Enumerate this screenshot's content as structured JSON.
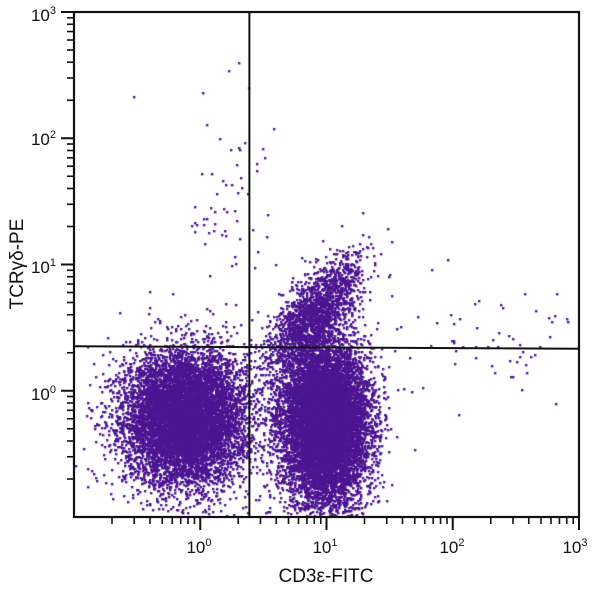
{
  "chart_data": {
    "type": "scatter",
    "subtype": "flow-cytometry-dot-plot",
    "xlabel": "CD3ε-FITC",
    "ylabel": "TCRγδ-PE",
    "xscale": "log",
    "yscale": "log",
    "xlim": [
      0.1,
      1000
    ],
    "ylim": [
      0.1,
      1000
    ],
    "x_ticks": [
      {
        "base": "10",
        "exp": "0",
        "value": 1
      },
      {
        "base": "10",
        "exp": "1",
        "value": 10
      },
      {
        "base": "10",
        "exp": "2",
        "value": 100
      },
      {
        "base": "10",
        "exp": "3",
        "value": 1000
      }
    ],
    "y_ticks": [
      {
        "base": "10",
        "exp": "0",
        "value": 1
      },
      {
        "base": "10",
        "exp": "1",
        "value": 10
      },
      {
        "base": "10",
        "exp": "2",
        "value": 100
      },
      {
        "base": "10",
        "exp": "3",
        "value": 1000
      }
    ],
    "grid": false,
    "legend": null,
    "dot_color": "#4b1491",
    "gates": {
      "vertical_x": 2.45,
      "horizontal_y_left": 2.25,
      "horizontal_y_right": 2.15
    },
    "populations": [
      {
        "name": "CD3- TCRgd- (lower-left)",
        "center_x": 0.75,
        "center_y": 0.62,
        "spread_x_decades": 0.24,
        "spread_y_decades": 0.26,
        "count": 9000
      },
      {
        "name": "CD3+ TCRgd- (lower-right)",
        "center_x": 9.5,
        "center_y": 0.55,
        "spread_x_decades": 0.17,
        "spread_y_decades": 0.32,
        "count": 11000
      },
      {
        "name": "CD3+ TCRgd+ (upper-right)",
        "center_x": 8.0,
        "center_y": 4.2,
        "spread_x_decades": 0.17,
        "spread_y_decades": 0.2,
        "count": 1700
      },
      {
        "name": "sparse outliers upper-left",
        "center_x": 1.6,
        "center_y": 40,
        "spread_x_decades": 0.2,
        "spread_y_decades": 0.45,
        "count": 60
      },
      {
        "name": "sparse high CD3 events",
        "center_x": 150,
        "center_y": 2.5,
        "spread_x_decades": 0.45,
        "spread_y_decades": 0.25,
        "count": 60
      }
    ],
    "quadrant_summary": {
      "upper_left": "very few events",
      "upper_right": "CD3ε+ TCRγδ+ population extending diagonally from ~3 to ~30 on both axes",
      "lower_left": "dense CD3ε- TCRγδ- population centered near (0.75, 0.6)",
      "lower_right": "dense CD3ε+ TCRγδ- population centered near (10, 0.55)"
    }
  }
}
